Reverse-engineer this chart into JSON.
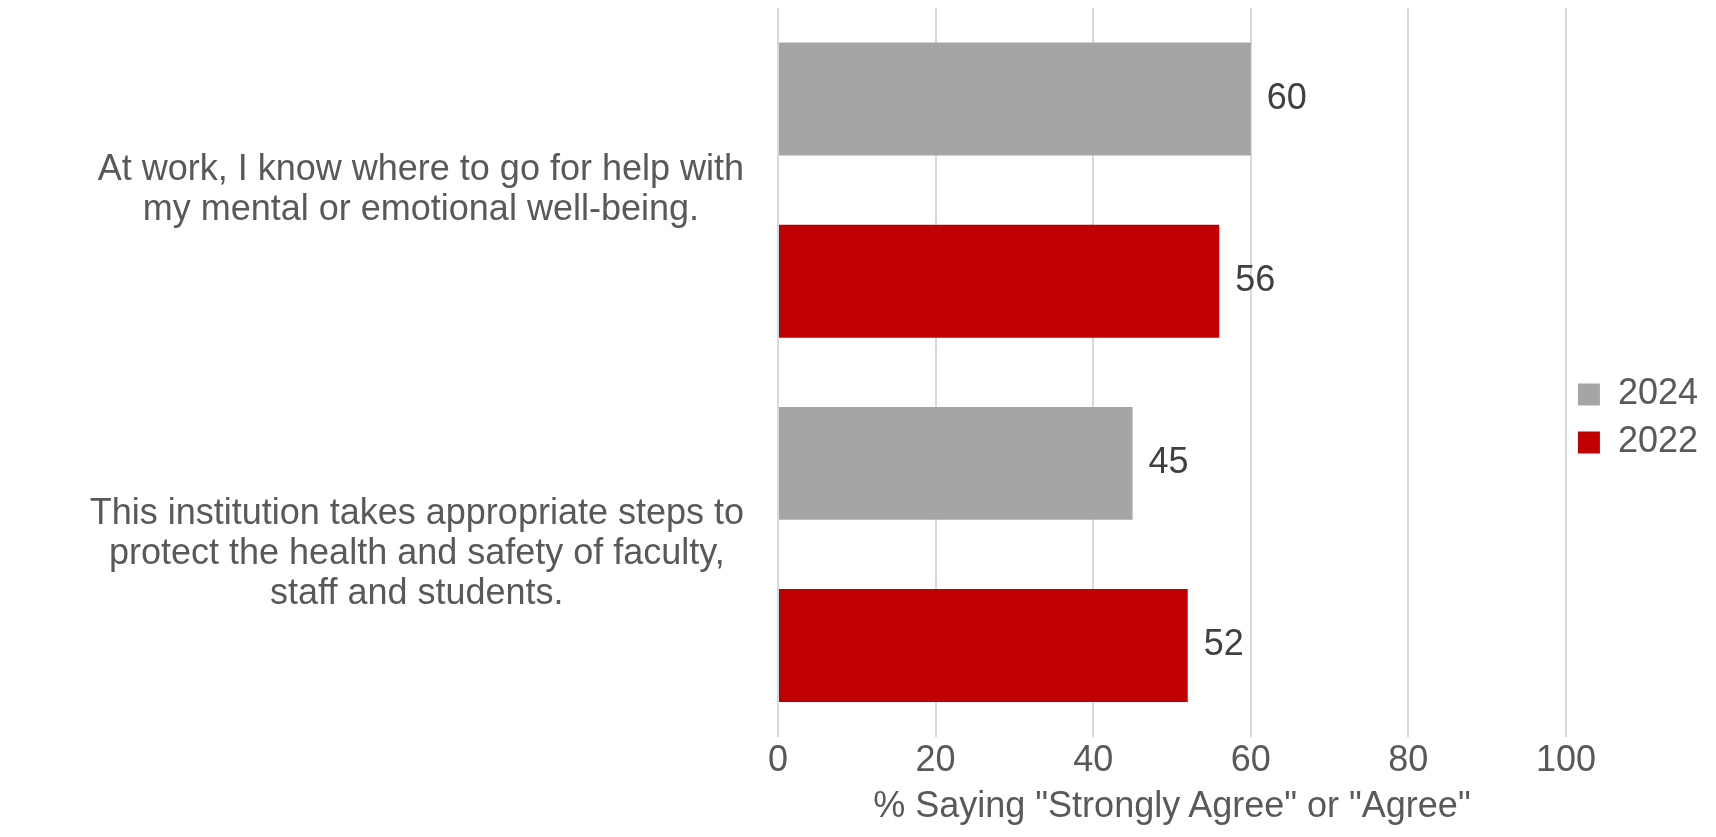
{
  "chart_data": {
    "type": "bar",
    "orientation": "horizontal",
    "categories": [
      "At work, I know where to go for help with my mental or emotional well-being.",
      "This institution takes appropriate steps to protect the health and safety of faculty, staff and students."
    ],
    "series": [
      {
        "name": "2024",
        "color": "#a5a5a5",
        "values": [
          60,
          45
        ]
      },
      {
        "name": "2022",
        "color": "#c00000",
        "values": [
          56,
          52
        ]
      }
    ],
    "xlabel": "% Saying \"Strongly Agree\" or \"Agree\"",
    "xlim": [
      0,
      100
    ],
    "xticks": [
      0,
      20,
      40,
      60,
      80,
      100
    ],
    "grid": "x",
    "legend": "right",
    "data_labels": true
  }
}
